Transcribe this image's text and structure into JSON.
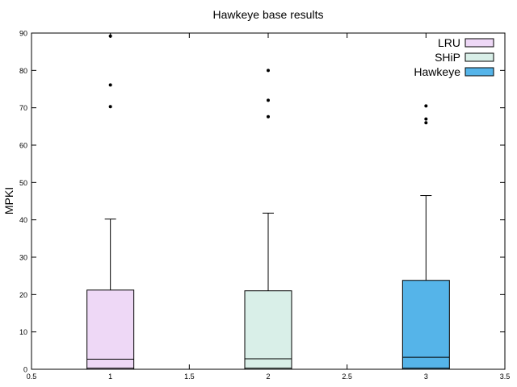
{
  "chart_data": {
    "type": "boxplot",
    "title": "Hawkeye base results",
    "xlabel": "",
    "ylabel": "MPKI",
    "xlim": [
      0.5,
      3.5
    ],
    "ylim": [
      0,
      90
    ],
    "xticks": [
      "0.5",
      "1",
      "1.5",
      "2",
      "2.5",
      "3",
      "3.5"
    ],
    "yticks": [
      "0",
      "10",
      "20",
      "30",
      "40",
      "50",
      "60",
      "70",
      "80",
      "90"
    ],
    "legend_position": "top-right",
    "grid": false,
    "series": [
      {
        "name": "LRU",
        "x": 1,
        "color": "#eed8f6",
        "min": 0,
        "q1": 0.3,
        "median": 2.7,
        "q3": 21.2,
        "whisker_high": 40.2,
        "outliers": [
          70.3,
          76.1,
          89.2
        ]
      },
      {
        "name": "SHiP",
        "x": 2,
        "color": "#d9efe8",
        "min": 0,
        "q1": 0.3,
        "median": 2.8,
        "q3": 21.0,
        "whisker_high": 41.8,
        "outliers": [
          67.6,
          72.0,
          80.0
        ]
      },
      {
        "name": "Hawkeye",
        "x": 3,
        "color": "#55b4e9",
        "min": 0,
        "q1": 0.3,
        "median": 3.2,
        "q3": 23.8,
        "whisker_high": 46.5,
        "outliers": [
          66.0,
          67.0,
          70.5
        ]
      }
    ]
  }
}
